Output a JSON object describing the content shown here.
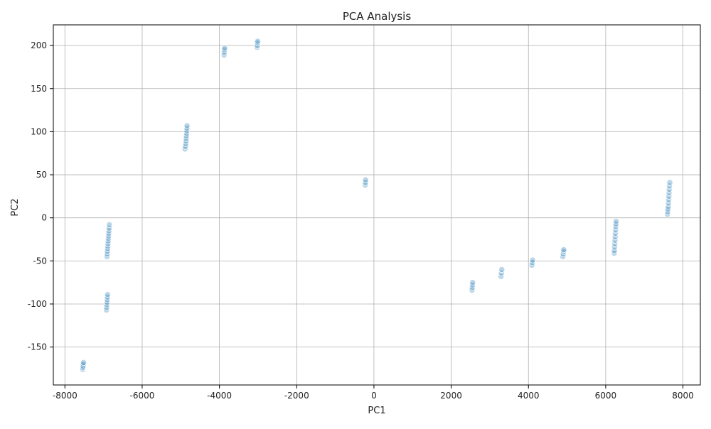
{
  "chart_data": {
    "type": "scatter",
    "title": "PCA Analysis",
    "xlabel": "PC1",
    "ylabel": "PC2",
    "xlim": [
      -8300,
      8450
    ],
    "ylim": [
      -194,
      224
    ],
    "xticks": [
      -8000,
      -6000,
      -4000,
      -2000,
      0,
      2000,
      4000,
      6000,
      8000
    ],
    "yticks": [
      -150,
      -100,
      -50,
      0,
      50,
      100,
      150,
      200
    ],
    "grid": true,
    "colors": {
      "point": "#1f77b4",
      "outline": "#ffffff",
      "grid": "#b0b0b0",
      "axis": "#000000"
    },
    "points": [
      {
        "x": -7540,
        "y": -176
      },
      {
        "x": -7540,
        "y": -174
      },
      {
        "x": -7530,
        "y": -172
      },
      {
        "x": -7525,
        "y": -170
      },
      {
        "x": -7520,
        "y": -168
      },
      {
        "x": -6925,
        "y": -107
      },
      {
        "x": -6920,
        "y": -104
      },
      {
        "x": -6915,
        "y": -101
      },
      {
        "x": -6910,
        "y": -98
      },
      {
        "x": -6905,
        "y": -95
      },
      {
        "x": -6900,
        "y": -92
      },
      {
        "x": -6895,
        "y": -89
      },
      {
        "x": -6910,
        "y": -45
      },
      {
        "x": -6905,
        "y": -42
      },
      {
        "x": -6900,
        "y": -39
      },
      {
        "x": -6895,
        "y": -36
      },
      {
        "x": -6890,
        "y": -33
      },
      {
        "x": -6885,
        "y": -30
      },
      {
        "x": -6880,
        "y": -27
      },
      {
        "x": -6875,
        "y": -24
      },
      {
        "x": -6870,
        "y": -21
      },
      {
        "x": -6865,
        "y": -18
      },
      {
        "x": -6860,
        "y": -15
      },
      {
        "x": -6855,
        "y": -12
      },
      {
        "x": -6850,
        "y": -8
      },
      {
        "x": -4890,
        "y": 80
      },
      {
        "x": -4880,
        "y": 83
      },
      {
        "x": -4870,
        "y": 86
      },
      {
        "x": -4865,
        "y": 89
      },
      {
        "x": -4860,
        "y": 92
      },
      {
        "x": -4855,
        "y": 95
      },
      {
        "x": -4850,
        "y": 98
      },
      {
        "x": -4845,
        "y": 101
      },
      {
        "x": -4840,
        "y": 104
      },
      {
        "x": -4838,
        "y": 107
      },
      {
        "x": -3880,
        "y": 189
      },
      {
        "x": -3875,
        "y": 192
      },
      {
        "x": -3870,
        "y": 195
      },
      {
        "x": -3865,
        "y": 197
      },
      {
        "x": -3025,
        "y": 198
      },
      {
        "x": -3020,
        "y": 200
      },
      {
        "x": -3015,
        "y": 203
      },
      {
        "x": -3010,
        "y": 205
      },
      {
        "x": -225,
        "y": 38
      },
      {
        "x": -220,
        "y": 41
      },
      {
        "x": -215,
        "y": 44
      },
      {
        "x": 2540,
        "y": -84
      },
      {
        "x": 2545,
        "y": -81
      },
      {
        "x": 2550,
        "y": -78
      },
      {
        "x": 2555,
        "y": -75
      },
      {
        "x": 3290,
        "y": -68
      },
      {
        "x": 3300,
        "y": -64
      },
      {
        "x": 3310,
        "y": -60
      },
      {
        "x": 4090,
        "y": -55
      },
      {
        "x": 4100,
        "y": -52
      },
      {
        "x": 4110,
        "y": -49
      },
      {
        "x": 4890,
        "y": -45
      },
      {
        "x": 4900,
        "y": -42
      },
      {
        "x": 4910,
        "y": -39
      },
      {
        "x": 4915,
        "y": -37
      },
      {
        "x": 6220,
        "y": -41
      },
      {
        "x": 6225,
        "y": -38
      },
      {
        "x": 6230,
        "y": -34
      },
      {
        "x": 6235,
        "y": -30
      },
      {
        "x": 6240,
        "y": -26
      },
      {
        "x": 6245,
        "y": -22
      },
      {
        "x": 6250,
        "y": -18
      },
      {
        "x": 6255,
        "y": -14
      },
      {
        "x": 6260,
        "y": -10
      },
      {
        "x": 6265,
        "y": -7
      },
      {
        "x": 6270,
        "y": -4
      },
      {
        "x": 7600,
        "y": 4
      },
      {
        "x": 7605,
        "y": 7
      },
      {
        "x": 7610,
        "y": 10
      },
      {
        "x": 7620,
        "y": 13
      },
      {
        "x": 7625,
        "y": 17
      },
      {
        "x": 7630,
        "y": 21
      },
      {
        "x": 7635,
        "y": 25
      },
      {
        "x": 7640,
        "y": 29
      },
      {
        "x": 7645,
        "y": 33
      },
      {
        "x": 7650,
        "y": 37
      },
      {
        "x": 7660,
        "y": 41
      }
    ]
  }
}
